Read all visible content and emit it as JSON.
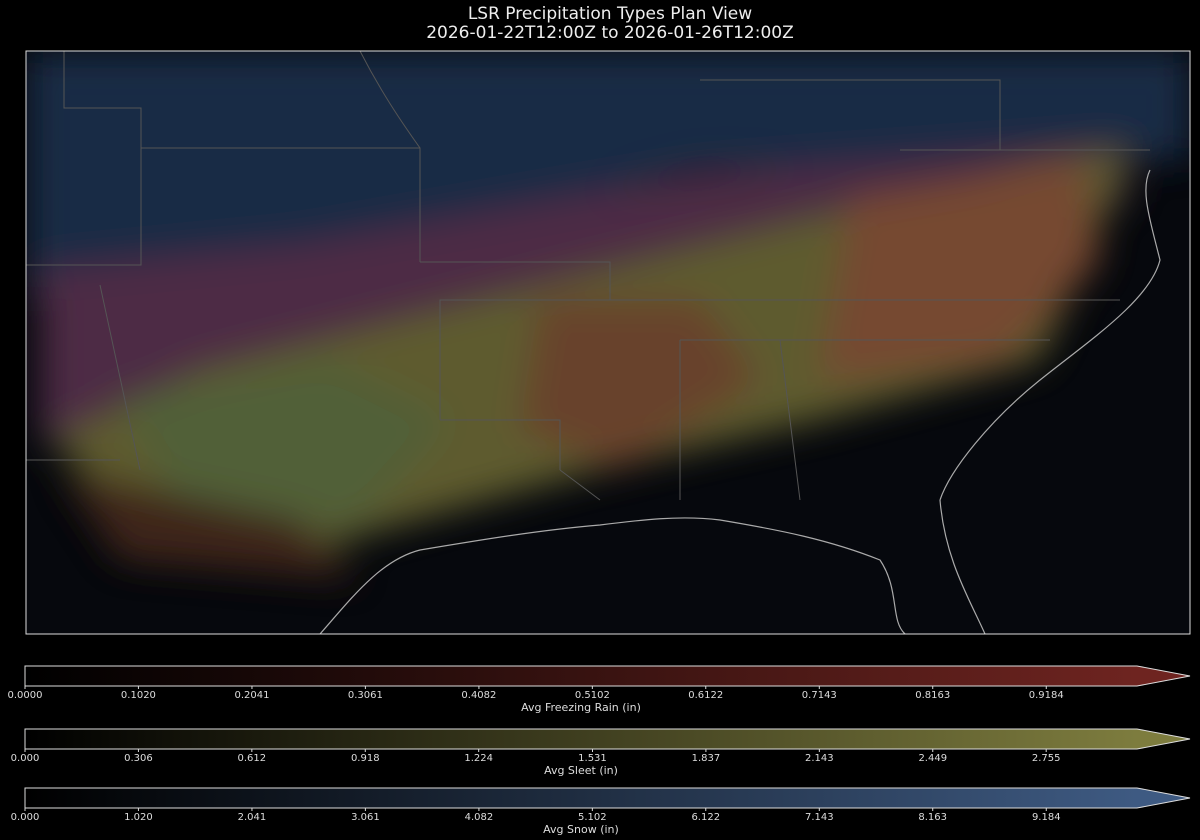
{
  "chart_data": {
    "type": "map",
    "title": "LSR Precipitation Types Plan View",
    "subtitle": "2026-01-22T12:00Z to 2026-01-26T12:00Z",
    "colorbars": [
      {
        "label": "Avg Freezing Rain (in)",
        "color": "#6e2420",
        "lim": [
          0,
          1
        ],
        "ticks": [
          {
            "value": 0,
            "label": "0.0000"
          },
          {
            "value": 0.102,
            "label": "0.1020"
          },
          0.2041,
          0.3061,
          0.4082,
          0.5102,
          0.6122,
          0.7143,
          0.8163,
          0.9184
        ]
      },
      {
        "label": "Avg Sleet (in)",
        "color": "#7d7c3e",
        "lim": [
          0,
          3
        ],
        "ticks": [
          {
            "value": 0,
            "label": "0.000"
          },
          0.306,
          0.612,
          0.918,
          1.224,
          1.531,
          1.837,
          2.143,
          2.449,
          2.755
        ]
      },
      {
        "label": "Avg Snow (in)",
        "color": "#3e5a82",
        "lim": [
          0,
          10
        ],
        "ticks": [
          {
            "value": 0,
            "label": "0.000"
          },
          {
            "value": 1.02,
            "label": "1.020"
          },
          2.041,
          3.061,
          4.082,
          5.102,
          6.122,
          7.143,
          8.163,
          9.184
        ]
      }
    ]
  }
}
